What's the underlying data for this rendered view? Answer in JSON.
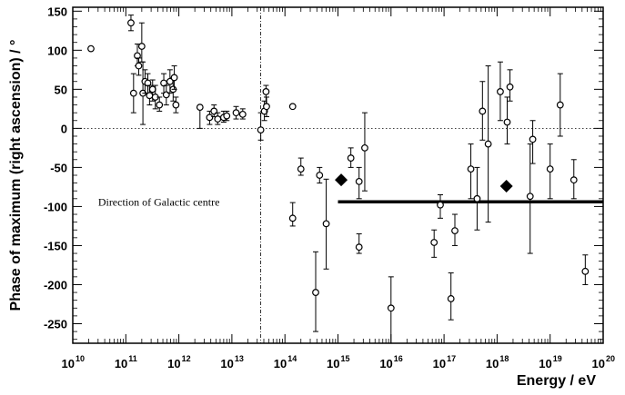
{
  "chart_data": {
    "type": "scatter",
    "title": "",
    "xlabel": "Energy / eV",
    "ylabel": "Phase of maximum (right ascension) / °",
    "x_scale": "log",
    "xlim": [
      10000000000.0,
      1e+20
    ],
    "ylim": [
      -275,
      155
    ],
    "grid": false,
    "x_tick_exponents": [
      10,
      11,
      12,
      13,
      14,
      15,
      16,
      17,
      18,
      19,
      20
    ],
    "x_tick_base": "10",
    "y_ticks": [
      150,
      100,
      50,
      0,
      -50,
      -100,
      -150,
      -200,
      -250
    ],
    "reference_lines": [
      {
        "orientation": "horizontal",
        "value": 0,
        "style": "dotted"
      },
      {
        "orientation": "vertical",
        "value": 35000000000000.0,
        "style": "dash-dot"
      }
    ],
    "annotations": [
      {
        "text": "Direction of Galactic centre",
        "x": 30000000000.0,
        "y": -94
      }
    ],
    "galactic_centre_line": {
      "x_start": 1000000000000000.0,
      "x_end": 1e+20,
      "y": -94
    },
    "series": [
      {
        "marker": "open-circle",
        "points": [
          {
            "x": 22000000000.0,
            "y": 102,
            "lo": 102,
            "hi": 102
          },
          {
            "x": 125000000000.0,
            "y": 135,
            "lo": 125,
            "hi": 145
          },
          {
            "x": 140000000000.0,
            "y": 45,
            "lo": 20,
            "hi": 70
          },
          {
            "x": 165000000000.0,
            "y": 93,
            "lo": 80,
            "hi": 108
          },
          {
            "x": 175000000000.0,
            "y": 80,
            "lo": 68,
            "hi": 90
          },
          {
            "x": 200000000000.0,
            "y": 105,
            "lo": 85,
            "hi": 135
          },
          {
            "x": 210000000000.0,
            "y": 45,
            "lo": 5,
            "hi": 85
          },
          {
            "x": 230000000000.0,
            "y": 60,
            "lo": 45,
            "hi": 75
          },
          {
            "x": 260000000000.0,
            "y": 58,
            "lo": 45,
            "hi": 70
          },
          {
            "x": 280000000000.0,
            "y": 42,
            "lo": 30,
            "hi": 55
          },
          {
            "x": 320000000000.0,
            "y": 50,
            "lo": 35,
            "hi": 62
          },
          {
            "x": 360000000000.0,
            "y": 40,
            "lo": 25,
            "hi": 55
          },
          {
            "x": 430000000000.0,
            "y": 30,
            "lo": 22,
            "hi": 40
          },
          {
            "x": 520000000000.0,
            "y": 58,
            "lo": 45,
            "hi": 70
          },
          {
            "x": 580000000000.0,
            "y": 43,
            "lo": 30,
            "hi": 55
          },
          {
            "x": 680000000000.0,
            "y": 60,
            "lo": 45,
            "hi": 75
          },
          {
            "x": 780000000000.0,
            "y": 50,
            "lo": 35,
            "hi": 65
          },
          {
            "x": 820000000000.0,
            "y": 65,
            "lo": 50,
            "hi": 80
          },
          {
            "x": 880000000000.0,
            "y": 30,
            "lo": 20,
            "hi": 40
          },
          {
            "x": 2500000000000.0,
            "y": 27,
            "lo": 0,
            "hi": 28
          },
          {
            "x": 3800000000000.0,
            "y": 14,
            "lo": 5,
            "hi": 22
          },
          {
            "x": 4600000000000.0,
            "y": 22,
            "lo": 15,
            "hi": 30
          },
          {
            "x": 5400000000000.0,
            "y": 12,
            "lo": 5,
            "hi": 20
          },
          {
            "x": 7000000000000.0,
            "y": 14,
            "lo": 8,
            "hi": 22
          },
          {
            "x": 8000000000000.0,
            "y": 16,
            "lo": 10,
            "hi": 22
          },
          {
            "x": 12000000000000.0,
            "y": 20,
            "lo": 12,
            "hi": 28
          },
          {
            "x": 16000000000000.0,
            "y": 18,
            "lo": 12,
            "hi": 25
          },
          {
            "x": 35000000000000.0,
            "y": -2,
            "lo": -15,
            "hi": 20
          },
          {
            "x": 41000000000000.0,
            "y": 22,
            "lo": 10,
            "hi": 35
          },
          {
            "x": 44000000000000.0,
            "y": 47,
            "lo": 30,
            "hi": 55
          },
          {
            "x": 45000000000000.0,
            "y": 28,
            "lo": 15,
            "hi": 40
          },
          {
            "x": 140000000000000.0,
            "y": 28,
            "lo": 28,
            "hi": 28
          },
          {
            "x": 140000000000000.0,
            "y": -115,
            "lo": -125,
            "hi": -95
          },
          {
            "x": 200000000000000.0,
            "y": -52,
            "lo": -60,
            "hi": -38
          },
          {
            "x": 380000000000000.0,
            "y": -210,
            "lo": -260,
            "hi": -158
          },
          {
            "x": 450000000000000.0,
            "y": -60,
            "lo": -70,
            "hi": -50
          },
          {
            "x": 600000000000000.0,
            "y": -122,
            "lo": -180,
            "hi": -65
          },
          {
            "x": 1750000000000000.0,
            "y": -38,
            "lo": -50,
            "hi": -25
          },
          {
            "x": 2500000000000000.0,
            "y": -68,
            "lo": -90,
            "hi": -50
          },
          {
            "x": 2500000000000000.0,
            "y": -152,
            "lo": -160,
            "hi": -135
          },
          {
            "x": 3200000000000000.0,
            "y": -25,
            "lo": -80,
            "hi": 20
          },
          {
            "x": 1e+16,
            "y": -230,
            "lo": -275,
            "hi": -190
          },
          {
            "x": 6.5e+16,
            "y": -146,
            "lo": -165,
            "hi": -130
          },
          {
            "x": 8.5e+16,
            "y": -98,
            "lo": -115,
            "hi": -85
          },
          {
            "x": 1.35e+17,
            "y": -218,
            "lo": -245,
            "hi": -185
          },
          {
            "x": 1.6e+17,
            "y": -131,
            "lo": -150,
            "hi": -110
          },
          {
            "x": 3.2e+17,
            "y": -52,
            "lo": -90,
            "hi": -20
          },
          {
            "x": 4.2e+17,
            "y": -90,
            "lo": -130,
            "hi": -50
          },
          {
            "x": 5.3e+17,
            "y": 22,
            "lo": -15,
            "hi": 60
          },
          {
            "x": 6.8e+17,
            "y": -20,
            "lo": -120,
            "hi": 80
          },
          {
            "x": 1.15e+18,
            "y": 47,
            "lo": 10,
            "hi": 85
          },
          {
            "x": 1.55e+18,
            "y": 8,
            "lo": -20,
            "hi": 40
          },
          {
            "x": 1.75e+18,
            "y": 53,
            "lo": 35,
            "hi": 75
          },
          {
            "x": 4.2e+18,
            "y": -87,
            "lo": -160,
            "hi": -20
          },
          {
            "x": 4.7e+18,
            "y": -14,
            "lo": -45,
            "hi": 10
          },
          {
            "x": 1e+19,
            "y": -52,
            "lo": -90,
            "hi": -20
          },
          {
            "x": 1.55e+19,
            "y": 30,
            "lo": -10,
            "hi": 70
          },
          {
            "x": 2.8e+19,
            "y": -66,
            "lo": -90,
            "hi": -40
          },
          {
            "x": 4.6e+19,
            "y": -183,
            "lo": -200,
            "hi": -162
          }
        ]
      },
      {
        "marker": "filled-diamond",
        "points": [
          {
            "x": 1150000000000000.0,
            "y": -66
          },
          {
            "x": 1.5e+18,
            "y": -74
          }
        ]
      }
    ]
  }
}
